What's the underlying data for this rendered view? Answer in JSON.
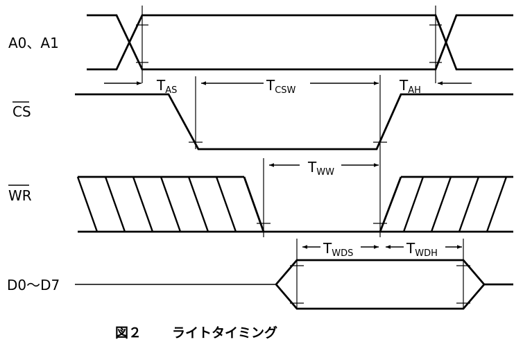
{
  "signals": {
    "a0_a1": "A0、A1",
    "cs": "CS",
    "wr": "WR",
    "d0_d7": "D0～D7"
  },
  "timings": {
    "tas": {
      "main": "T",
      "sub": "AS"
    },
    "tcsw": {
      "main": "T",
      "sub": "CSW"
    },
    "tah": {
      "main": "T",
      "sub": "AH"
    },
    "tww": {
      "main": "T",
      "sub": "WW"
    },
    "twds": {
      "main": "T",
      "sub": "WDS"
    },
    "twdh": {
      "main": "T",
      "sub": "WDH"
    }
  },
  "caption": {
    "figure": "図２",
    "title": "ライトタイミング"
  }
}
